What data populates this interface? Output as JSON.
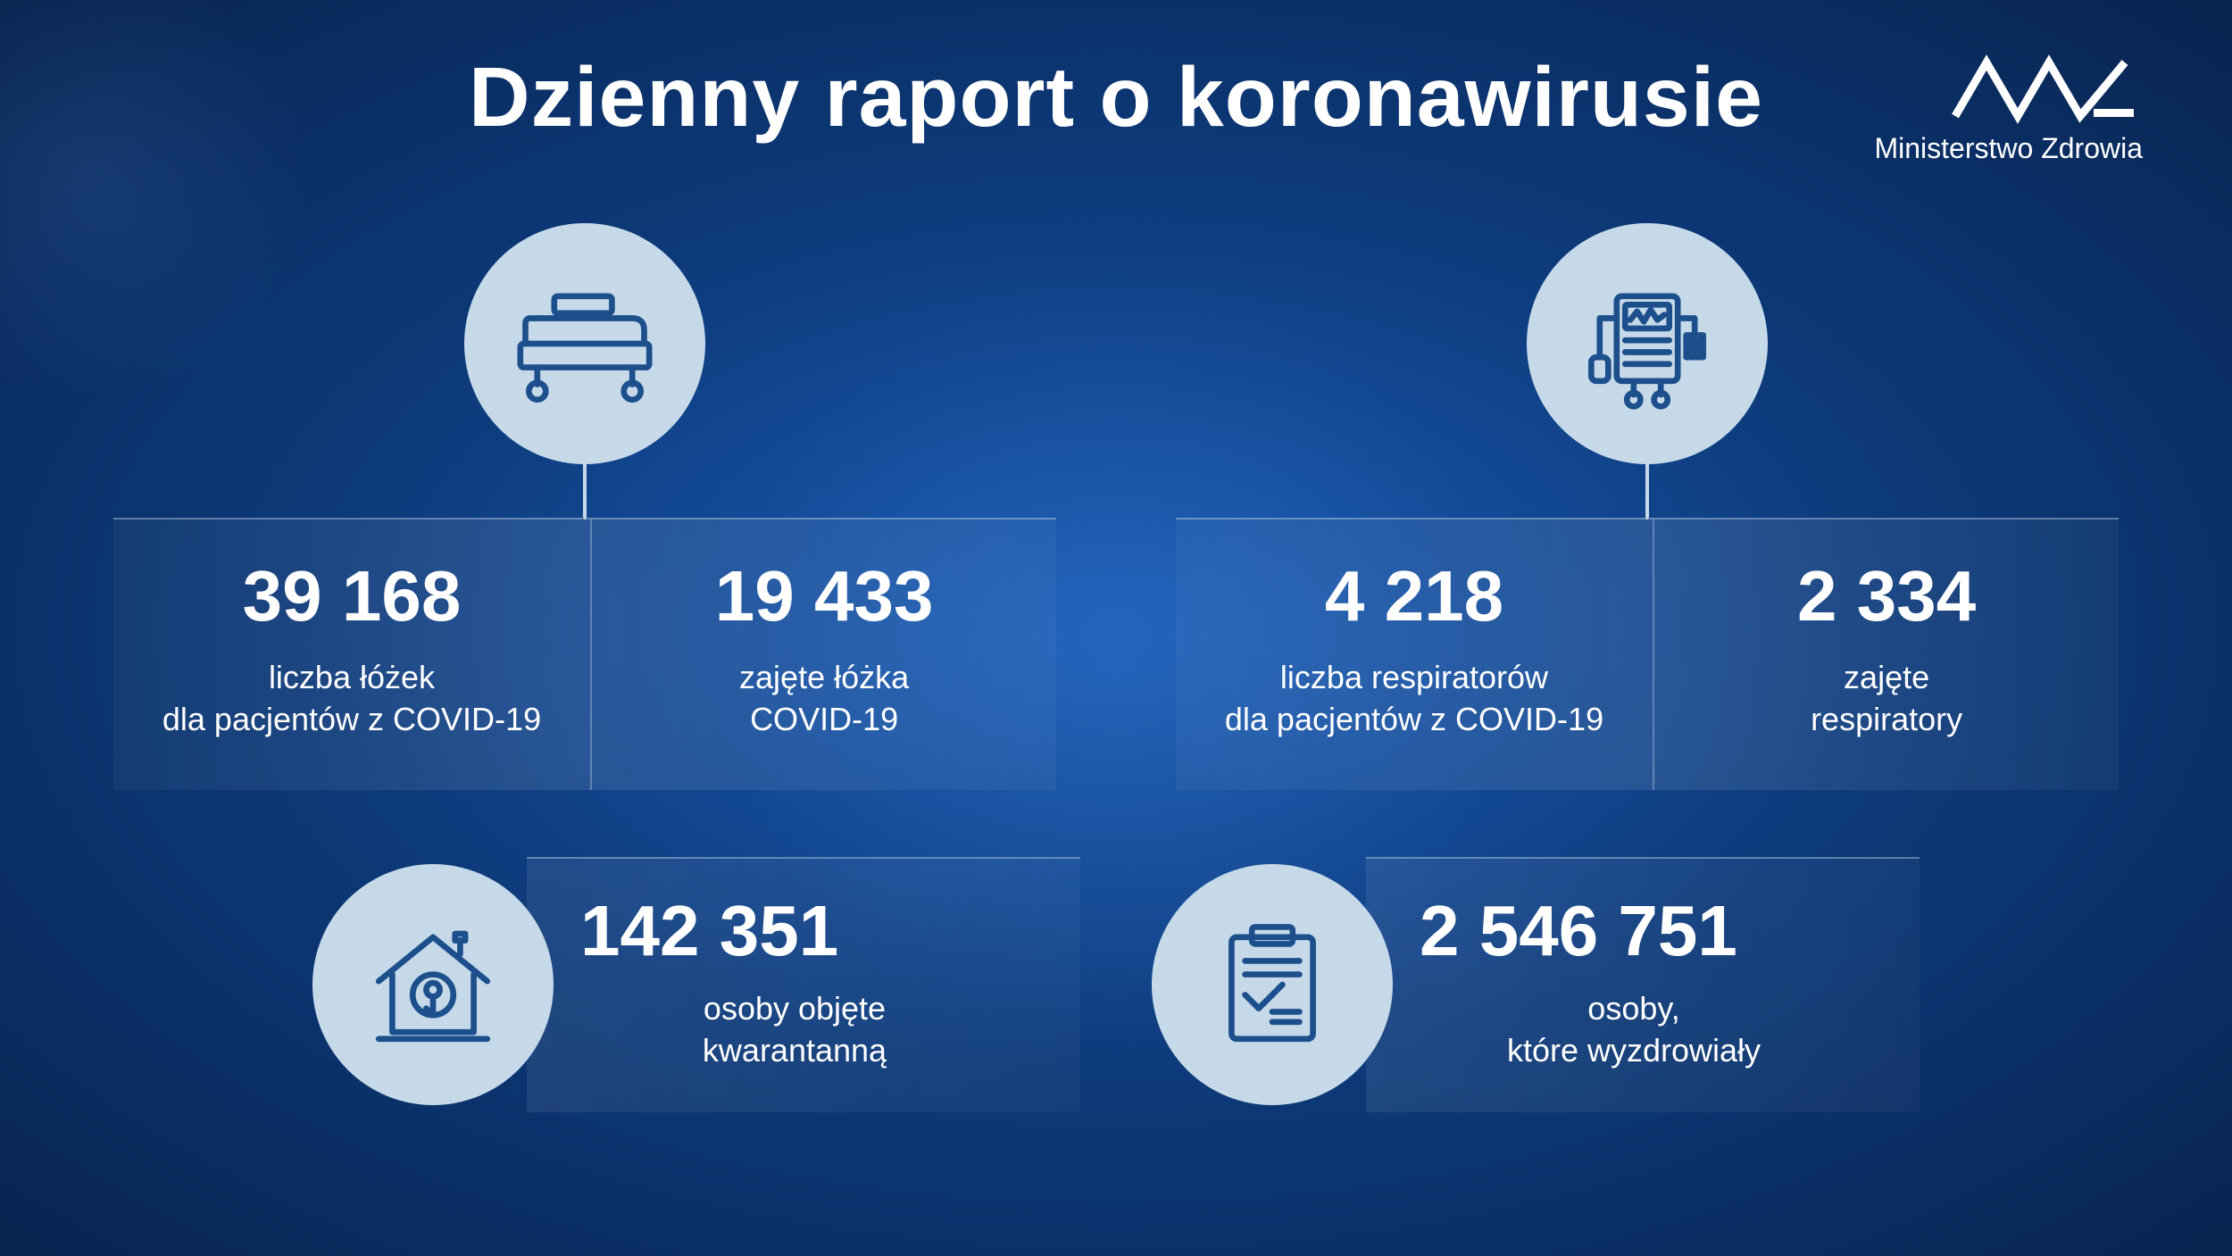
{
  "title": "Dzienny raport o koronawirusie",
  "logo_text": "Ministerstwo Zdrowia",
  "colors": {
    "icon_bg": "#c5d9e8",
    "icon_stroke": "#1d4f8c",
    "text": "#ffffff"
  },
  "beds": {
    "total_value": "39 168",
    "total_label": "liczba łóżek\ndla pacjentów z COVID-19",
    "occupied_value": "19 433",
    "occupied_label": "zajęte łóżka\nCOVID-19"
  },
  "respirators": {
    "total_value": "4 218",
    "total_label": "liczba respiratorów\ndla pacjentów z COVID-19",
    "occupied_value": "2 334",
    "occupied_label": "zajęte\nrespiratory"
  },
  "quarantine": {
    "value": "142 351",
    "label": "osoby objęte\nkwarantanną"
  },
  "recovered": {
    "value": "2 546 751",
    "label": "osoby,\nktóre wyzdrowiały"
  }
}
